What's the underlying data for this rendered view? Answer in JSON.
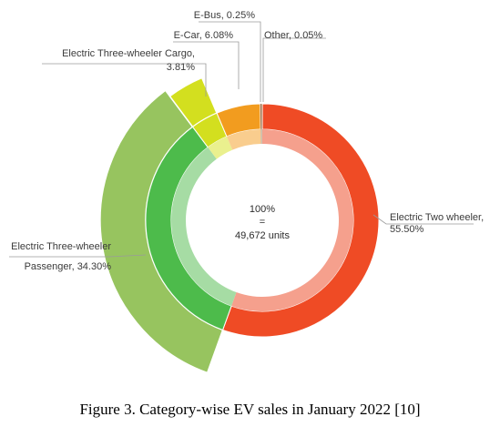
{
  "caption": "Figure 3. Category-wise EV sales in January 2022 [10]",
  "center_text": {
    "line1": "100%",
    "line2": "=",
    "line3": "49,672 units"
  },
  "chart_data": {
    "type": "pie",
    "variant": "sunburst-donut",
    "title": "",
    "total_units": 49672,
    "slices": [
      {
        "name": "Electric Two wheeler",
        "label_line1": "Electric Two wheeler,",
        "label_line2": "55.50%",
        "value": 55.5,
        "color": "#ef4b25",
        "inner_color": "#f5a08d"
      },
      {
        "name": "Electric Three-wheeler Passenger",
        "label_line1": "Electric Three-wheeler",
        "label_line2": "Passenger, 34.30%",
        "value": 34.3,
        "color": "#4dbb4b",
        "inner_color": "#a6dca4",
        "group": "Electric Three-wheeler"
      },
      {
        "name": "Electric Three-wheeler Cargo",
        "label_line1": "Electric Three-wheeler Cargo,",
        "label_line2": "3.81%",
        "value": 3.81,
        "color": "#d3df1f",
        "inner_color": "#eaf08e",
        "group": "Electric Three-wheeler"
      },
      {
        "name": "E-Car",
        "label_line1": "E-Car, 6.08%",
        "label_line2": "",
        "value": 6.08,
        "color": "#f29c1f",
        "inner_color": "#f9cd8e"
      },
      {
        "name": "E-Bus",
        "label_line1": "E-Bus, 0.25%",
        "label_line2": "",
        "value": 0.25,
        "color": "#9f6a46",
        "inner_color": "#cfb5a2"
      },
      {
        "name": "Other",
        "label_line1": "Other, 0.05%",
        "label_line2": "",
        "value": 0.05,
        "color": "#7a8a3a",
        "inner_color": "#bcc59c"
      }
    ],
    "group_ring": {
      "name": "Electric Three-wheeler",
      "value": 38.11,
      "color": "#97c45f"
    }
  }
}
